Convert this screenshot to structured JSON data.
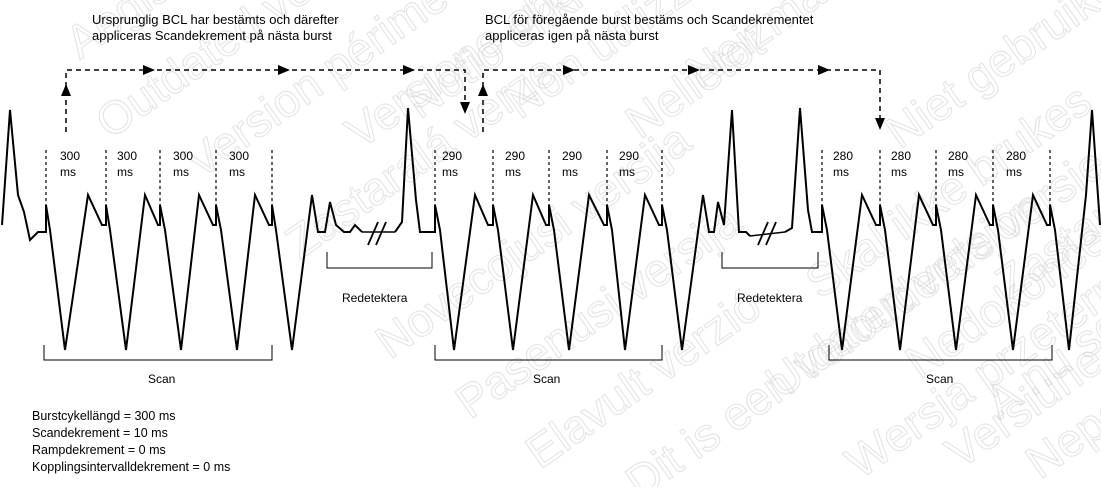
{
  "annotations": {
    "top_left_line1": "Ursprunglig BCL har bestämts och därefter",
    "top_left_line2": "appliceras Scandekrement på nästa burst",
    "top_right_line1": "BCL för föregående burst bestäms och Scandekrementet",
    "top_right_line2": "appliceras igen på nästa burst"
  },
  "intervals": {
    "group1": [
      "300",
      "300",
      "300",
      "300"
    ],
    "group2": [
      "290",
      "290",
      "290",
      "290"
    ],
    "group3": [
      "280",
      "280",
      "280",
      "280"
    ],
    "unit": "ms"
  },
  "labels": {
    "scan": "Scan",
    "redetect": "Redetektera"
  },
  "legend": [
    "Burstcykellängd = 300 ms",
    "Scandekrement = 10 ms",
    "Rampdekrement = 0 ms",
    "Kopplingsintervalldekrement = 0 ms"
  ],
  "watermark": [
    "Aegis",
    "Outdated version",
    "Version périmée",
    "Zastaralá verze",
    "Versione obsoleta",
    "Notio ekki",
    "Non utilizzare",
    "Novecojusi versija",
    "Nelietot",
    "Pasenusi versija",
    "Elavult verzió",
    "Dit is een verouderde versie",
    "Utdatert versjon",
    "Skal ikke brukes",
    "Niet gebruiken",
    "Nedokončena verze",
    "Wersja przeterminowana",
    "Versiune expirată",
    "A nu se utiliza",
    "Nepoužívať",
    "Zastarela različica",
    "Neizmantot"
  ]
}
